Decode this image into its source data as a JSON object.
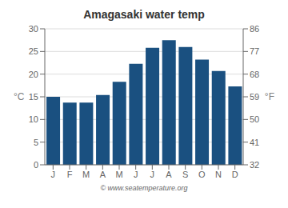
{
  "chart_data": {
    "type": "bar",
    "title": "Amagasaki water temp",
    "categories": [
      "J",
      "F",
      "M",
      "A",
      "M",
      "J",
      "J",
      "A",
      "S",
      "O",
      "N",
      "D"
    ],
    "values": [
      15.0,
      13.7,
      13.7,
      15.4,
      18.3,
      22.3,
      25.8,
      27.5,
      26.0,
      23.2,
      20.7,
      17.3
    ],
    "color": "#1a5080",
    "ylabel": "°C",
    "y2label": "°F",
    "ylim": [
      0,
      30
    ],
    "yticks": [
      0,
      5,
      10,
      15,
      20,
      25,
      30
    ],
    "y2lim": [
      32,
      86
    ],
    "y2ticks": [
      32,
      41,
      50,
      59,
      68,
      77,
      86
    ],
    "grid": true,
    "annotations": [
      "© www.seatemperature.org"
    ]
  }
}
